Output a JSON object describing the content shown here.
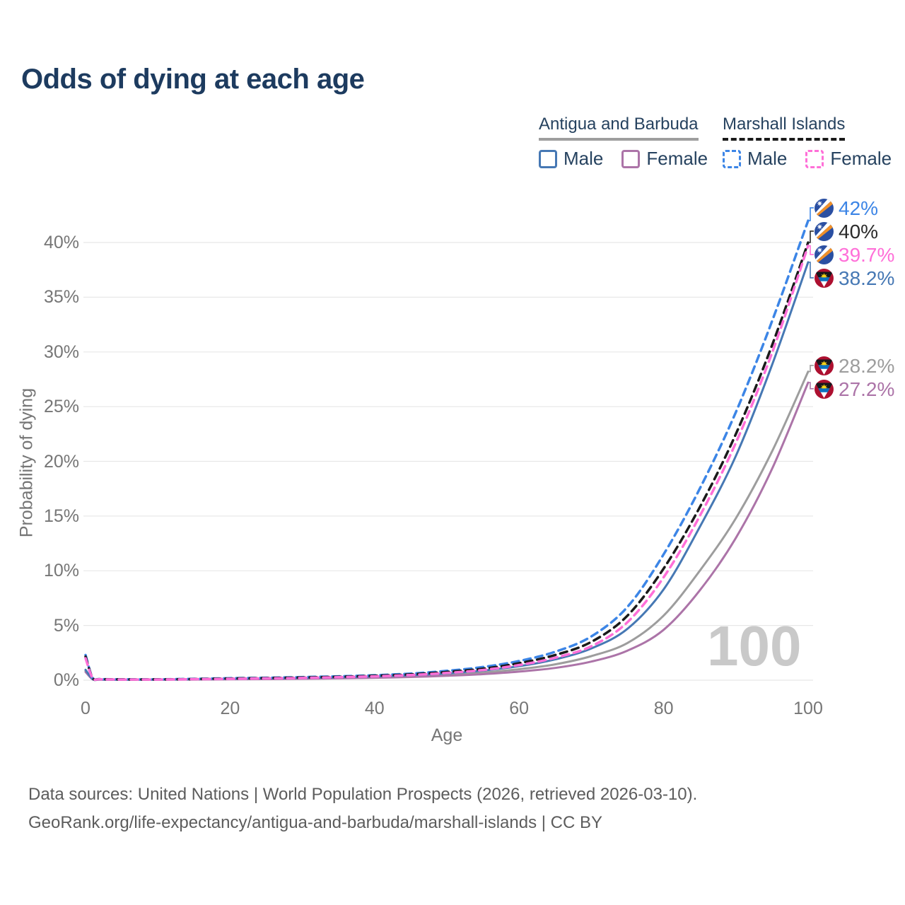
{
  "title": "Odds of dying at each age",
  "watermark": "100",
  "colors": {
    "title_text": "#1d3b5f",
    "legend_text": "#26425f",
    "axis_text": "#767676",
    "grid": "#e8e8e8",
    "footer_text": "#5c5c5c",
    "watermark_text": "#c9c9c9"
  },
  "legend": {
    "groups": [
      {
        "id": "ab",
        "name": "Antigua and Barbuda",
        "underline_style": "solid",
        "underline_color": "#9e9e9e",
        "items": [
          {
            "label": "Male",
            "color": "#4678b4",
            "dashed": false
          },
          {
            "label": "Female",
            "color": "#ac74a8",
            "dashed": false
          }
        ]
      },
      {
        "id": "mi",
        "name": "Marshall Islands",
        "underline_style": "dashed",
        "underline_color": "#1a1a1a",
        "items": [
          {
            "label": "Male",
            "color": "#3c85e6",
            "dashed": true
          },
          {
            "label": "Female",
            "color": "#ff6fd8",
            "dashed": true
          }
        ]
      }
    ]
  },
  "axes": {
    "ylabel": "Probability of dying",
    "xlabel": "Age",
    "yticks": [
      {
        "value": 0,
        "label": "0%"
      },
      {
        "value": 5,
        "label": "5%"
      },
      {
        "value": 10,
        "label": "10%"
      },
      {
        "value": 15,
        "label": "15%"
      },
      {
        "value": 20,
        "label": "20%"
      },
      {
        "value": 25,
        "label": "25%"
      },
      {
        "value": 30,
        "label": "30%"
      },
      {
        "value": 35,
        "label": "35%"
      },
      {
        "value": 40,
        "label": "40%"
      }
    ],
    "xticks": [
      {
        "value": 0,
        "label": "0"
      },
      {
        "value": 20,
        "label": "20"
      },
      {
        "value": 40,
        "label": "40"
      },
      {
        "value": 60,
        "label": "60"
      },
      {
        "value": 80,
        "label": "80"
      },
      {
        "value": 100,
        "label": "100"
      }
    ]
  },
  "chart_data": {
    "type": "line",
    "title": "Odds of dying at each age",
    "xlabel": "Age",
    "ylabel": "Probability of dying",
    "xlim": [
      0,
      100
    ],
    "ylim": [
      0,
      43
    ],
    "grid": "horizontal",
    "x": [
      0,
      1,
      2,
      5,
      10,
      15,
      20,
      25,
      30,
      35,
      40,
      45,
      50,
      55,
      60,
      65,
      70,
      75,
      80,
      85,
      90,
      95,
      100
    ],
    "series": [
      {
        "id": "ab_both",
        "name": "Antigua and Barbuda — Both sexes",
        "country": "Antigua and Barbuda",
        "sex": "both",
        "color": "#9d9d9d",
        "dashed": false,
        "values": [
          0.85,
          0.08,
          0.05,
          0.04,
          0.05,
          0.07,
          0.1,
          0.13,
          0.16,
          0.21,
          0.27,
          0.36,
          0.5,
          0.7,
          1.0,
          1.45,
          2.2,
          3.4,
          5.9,
          10.0,
          14.8,
          20.9,
          28.2
        ]
      },
      {
        "id": "ab_female",
        "name": "Antigua and Barbuda — Female",
        "country": "Antigua and Barbuda",
        "sex": "female",
        "color": "#ac74a8",
        "dashed": false,
        "values": [
          0.75,
          0.07,
          0.05,
          0.04,
          0.04,
          0.06,
          0.08,
          0.1,
          0.13,
          0.17,
          0.22,
          0.29,
          0.4,
          0.55,
          0.78,
          1.12,
          1.7,
          2.7,
          4.6,
          8.2,
          13.0,
          19.3,
          27.2
        ]
      },
      {
        "id": "ab_male",
        "name": "Antigua and Barbuda — Male",
        "country": "Antigua and Barbuda",
        "sex": "male",
        "color": "#4678b4",
        "dashed": false,
        "values": [
          0.95,
          0.09,
          0.06,
          0.05,
          0.06,
          0.09,
          0.13,
          0.16,
          0.2,
          0.26,
          0.34,
          0.45,
          0.62,
          0.88,
          1.28,
          1.9,
          2.9,
          4.7,
          8.3,
          14.0,
          20.5,
          28.8,
          38.2
        ]
      },
      {
        "id": "mi_male",
        "name": "Marshall Islands — Male",
        "country": "Marshall Islands",
        "sex": "male",
        "color": "#3c85e6",
        "dashed": true,
        "values": [
          2.3,
          0.18,
          0.1,
          0.08,
          0.08,
          0.12,
          0.18,
          0.22,
          0.28,
          0.35,
          0.45,
          0.6,
          0.85,
          1.2,
          1.75,
          2.6,
          4.0,
          6.7,
          11.5,
          17.5,
          24.5,
          32.8,
          42.0
        ]
      },
      {
        "id": "mi_both",
        "name": "Marshall Islands — Both sexes",
        "country": "Marshall Islands",
        "sex": "both",
        "color": "#1a1a1a",
        "dashed": true,
        "values": [
          2.15,
          0.16,
          0.09,
          0.07,
          0.07,
          0.1,
          0.15,
          0.19,
          0.24,
          0.31,
          0.4,
          0.53,
          0.75,
          1.05,
          1.55,
          2.3,
          3.5,
          5.9,
          10.2,
          15.8,
          22.5,
          30.6,
          40.0
        ]
      },
      {
        "id": "mi_female",
        "name": "Marshall Islands — Female",
        "country": "Marshall Islands",
        "sex": "female",
        "color": "#ff6fd8",
        "dashed": true,
        "values": [
          2.0,
          0.15,
          0.08,
          0.06,
          0.06,
          0.09,
          0.12,
          0.16,
          0.2,
          0.27,
          0.35,
          0.47,
          0.66,
          0.93,
          1.38,
          2.05,
          3.1,
          5.3,
          9.4,
          15.0,
          21.7,
          29.9,
          39.7
        ]
      }
    ]
  },
  "end_labels": [
    {
      "text": "42%",
      "value": 42.0,
      "color": "#3c85e6",
      "flag": "mh",
      "flag_name": "marshall-islands-flag-icon"
    },
    {
      "text": "40%",
      "value": 40.0,
      "color": "#2b2b2b",
      "flag": "mh",
      "flag_name": "marshall-islands-flag-icon"
    },
    {
      "text": "39.7%",
      "value": 39.7,
      "color": "#ff6fd8",
      "flag": "mh",
      "flag_name": "marshall-islands-flag-icon"
    },
    {
      "text": "38.2%",
      "value": 38.2,
      "color": "#4678b4",
      "flag": "ag",
      "flag_name": "antigua-and-barbuda-flag-icon"
    },
    {
      "text": "28.2%",
      "value": 28.2,
      "color": "#9d9d9d",
      "flag": "ag",
      "flag_name": "antigua-and-barbuda-flag-icon"
    },
    {
      "text": "27.2%",
      "value": 27.2,
      "color": "#ac74a8",
      "flag": "ag",
      "flag_name": "antigua-and-barbuda-flag-icon"
    }
  ],
  "footer": {
    "line1": "Data sources: United Nations | World Population Prospects (2026, retrieved 2026-03-10).",
    "line2": "GeoRank.org/life-expectancy/antigua-and-barbuda/marshall-islands | CC BY"
  }
}
